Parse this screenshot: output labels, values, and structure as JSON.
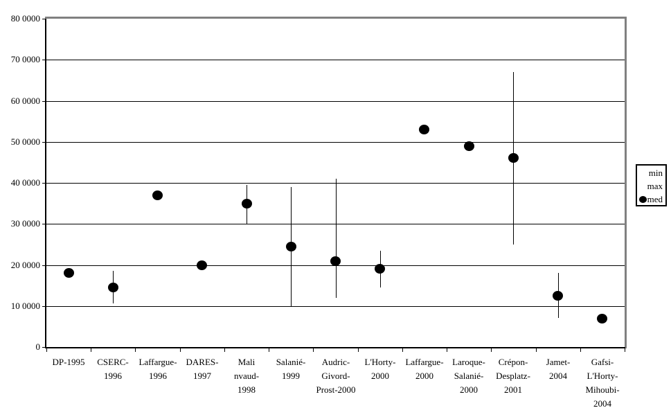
{
  "chart_data": {
    "type": "scatter",
    "subtype": "dot-plot-with-min-max-range-bars",
    "title": "",
    "xlabel": "",
    "ylabel": "",
    "ylim": [
      0,
      800000
    ],
    "ytick_interval": 100000,
    "ytick_labels": [
      "0",
      "10 0000",
      "20 0000",
      "30 0000",
      "40 0000",
      "50 0000",
      "60 0000",
      "70 0000",
      "80 0000"
    ],
    "grid": "horizontal",
    "legend": {
      "position": "right",
      "entries": [
        {
          "label": "min",
          "marker": "none"
        },
        {
          "label": "max",
          "marker": "none"
        },
        {
          "label": "med",
          "marker": "filled-circle"
        }
      ]
    },
    "categories": [
      {
        "label": "DP-1995",
        "lines": [
          "DP-1995"
        ]
      },
      {
        "label": "CSERC-1996",
        "lines": [
          "CSERC-",
          "1996"
        ]
      },
      {
        "label": "Laffargue-1996",
        "lines": [
          "Laffargue-",
          "1996"
        ]
      },
      {
        "label": "DARES-1997",
        "lines": [
          "DARES-",
          "1997"
        ]
      },
      {
        "label": "Malinvaud-1998",
        "lines": [
          "Mali",
          "nvaud-",
          "1998"
        ]
      },
      {
        "label": "Salanié-1999",
        "lines": [
          "Salanié-",
          "1999"
        ]
      },
      {
        "label": "Audric-Givord-Prost-2000",
        "lines": [
          "Audric-",
          "Givord-",
          "Prost-2000"
        ]
      },
      {
        "label": "L'Horty-2000",
        "lines": [
          "L'Horty-",
          "2000"
        ]
      },
      {
        "label": "Laffargue-2000",
        "lines": [
          "Laffargue-",
          "2000"
        ]
      },
      {
        "label": "Laroque-Salanié-2000",
        "lines": [
          "Laroque-",
          "Salanié-",
          "2000"
        ]
      },
      {
        "label": "Crépon-Desplatz-2001",
        "lines": [
          "Crépon-",
          "Desplatz-",
          "2001"
        ]
      },
      {
        "label": "Jamet-2004",
        "lines": [
          "Jamet-",
          "2004"
        ]
      },
      {
        "label": "Gafsi-L'Horty-Mihoubi-2004",
        "lines": [
          "Gafsi-",
          "L'Horty-",
          "Mihoubi-",
          "2004"
        ]
      }
    ],
    "series": [
      {
        "name": "min",
        "marker": "none",
        "values": [
          null,
          105000,
          null,
          null,
          300000,
          100000,
          120000,
          145000,
          null,
          null,
          250000,
          70000,
          null
        ]
      },
      {
        "name": "max",
        "marker": "none",
        "values": [
          null,
          185000,
          null,
          null,
          395000,
          390000,
          410000,
          235000,
          null,
          null,
          670000,
          180000,
          null
        ]
      },
      {
        "name": "med",
        "marker": "filled-circle",
        "values": [
          180000,
          145000,
          370000,
          200000,
          350000,
          245000,
          210000,
          190000,
          530000,
          490000,
          460000,
          125000,
          70000
        ]
      }
    ],
    "colors": {
      "marker": "#000000",
      "range_line": "#000000",
      "gridline": "#000000",
      "axis": "#000000",
      "plot_border": "#808080",
      "background": "#ffffff"
    }
  }
}
